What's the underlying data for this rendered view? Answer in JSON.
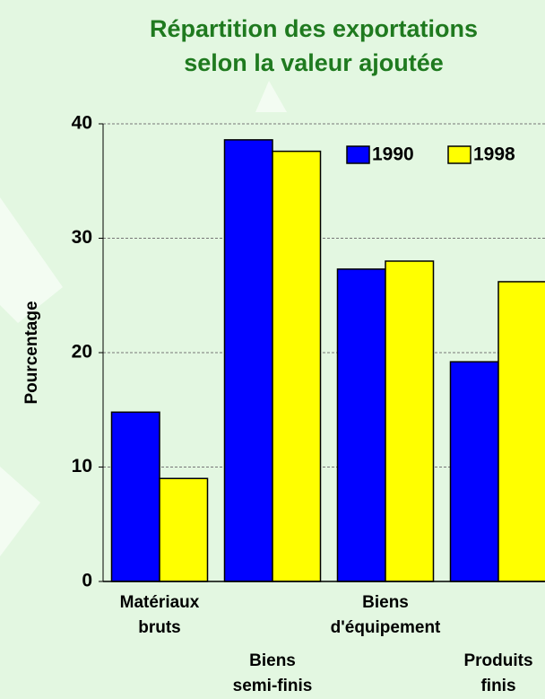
{
  "chart_data": {
    "type": "bar",
    "title": [
      "Répartition des exportations",
      "selon la valeur ajoutée"
    ],
    "y_label": "Pourcentage",
    "categories": [
      "Matériaux bruts",
      "Biens semi-finis",
      "Biens d'équipement",
      "Produits finis"
    ],
    "series": [
      {
        "name": "1990",
        "color": "#0000ff",
        "values": [
          14.8,
          38.6,
          27.3,
          19.2
        ]
      },
      {
        "name": "1998",
        "color": "#ffff00",
        "values": [
          9.0,
          37.6,
          28.0,
          26.2
        ]
      }
    ],
    "ylim": [
      0,
      40
    ],
    "yticks": [
      0,
      10,
      20,
      30,
      40
    ],
    "grid": true,
    "legend": "top-right"
  }
}
